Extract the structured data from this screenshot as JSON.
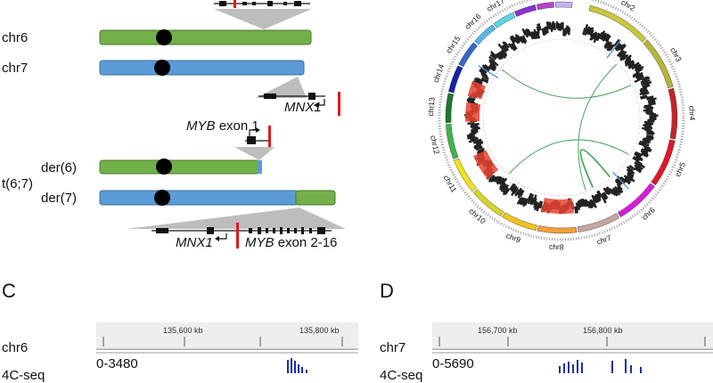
{
  "panel_a": {
    "chromosomes": [
      {
        "name": "chr6",
        "color": "#72b04a"
      },
      {
        "name": "chr7",
        "color": "#5a9bd8"
      }
    ],
    "translocation_label": "t(6;7)",
    "derivatives": [
      "der(6)",
      "der(7)"
    ],
    "gene_labels": {
      "mnx1": "MNX1",
      "myb": "MYB",
      "exon1": "exon 1",
      "exon_rest": "exon 2-16"
    }
  },
  "panel_b": {
    "circos_labels": [
      "chr2",
      "chr3",
      "chr4",
      "chr5",
      "chr6",
      "chr7",
      "chr8",
      "chr9",
      "chr10",
      "chr11",
      "chr12",
      "chr13",
      "chr14",
      "chr15",
      "chr16",
      "chr17",
      "chr18",
      "chr19",
      "chr20"
    ],
    "ideogram_colors": [
      "#c8c63c",
      "#b5b43a",
      "#c4232b",
      "#e0162b",
      "#d51dd4",
      "#c8a6a0",
      "#f2a037",
      "#f0c419",
      "#d4d428",
      "#f0e21c",
      "#3fb44a",
      "#1a7a2a",
      "#1424a8",
      "#3668c4",
      "#53b7e7",
      "#5fd3e7",
      "#8c2fd0",
      "#b244c9",
      "#c7b4ef"
    ],
    "colors": {
      "link": "#4aa35a",
      "gain": "#e8432f",
      "cnv": "#222222",
      "loss": "#4a97d6"
    }
  },
  "panel_c": {
    "letter": "C",
    "chrom": "chr6",
    "ticks": [
      "135,600 kb",
      "135,800 kb"
    ],
    "range": "0-3480",
    "track_label": "4C-seq",
    "bar_color": "#1f2fa8"
  },
  "panel_d": {
    "letter": "D",
    "chrom": "chr7",
    "ticks": [
      "156,700 kb",
      "156,800 kb"
    ],
    "range": "0-5690",
    "track_label": "4C-seq",
    "bar_color": "#1f2fa8"
  }
}
